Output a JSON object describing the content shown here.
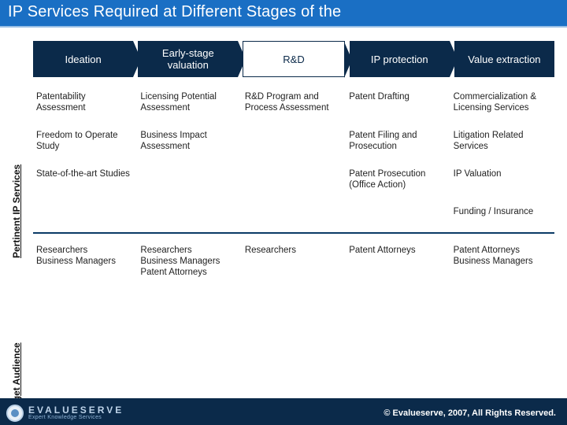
{
  "title": "IP Services Required at Different Stages of the",
  "stages": [
    {
      "label": "Ideation",
      "variant": "dark"
    },
    {
      "label": "Early-stage valuation",
      "variant": "dark"
    },
    {
      "label": "R&D",
      "variant": "white"
    },
    {
      "label": "IP protection",
      "variant": "dark"
    },
    {
      "label": "Value extraction",
      "variant": "dark"
    }
  ],
  "section_services_label": "Pertinent IP Services",
  "section_audience_label": "Target Audience",
  "services_rows": [
    [
      "Patentability Assessment",
      "Licensing Potential Assessment",
      "R&D Program and Process Assessment",
      "Patent Drafting",
      "Commercialization & Licensing Services"
    ],
    [
      "Freedom to Operate Study",
      "Business Impact Assessment",
      "",
      "Patent Filing and Prosecution",
      "Litigation Related Services"
    ],
    [
      "State-of-the-art Studies",
      "",
      "",
      "Patent Prosecution (Office Action)",
      "IP Valuation"
    ],
    [
      "",
      "",
      "",
      "",
      "Funding / Insurance"
    ]
  ],
  "audience_rows": [
    [
      "Researchers\nBusiness Managers",
      "Researchers\nBusiness Managers\nPatent Attorneys",
      "Researchers",
      "Patent Attorneys",
      "Patent Attorneys\nBusiness Managers"
    ]
  ],
  "brand": {
    "name": "EVALUESERVE",
    "tagline": "Expert Knowledge Services"
  },
  "copyright": "© Evalueserve, 2007, All Rights Reserved.",
  "colors": {
    "header_blue": "#1a6fc4",
    "stage_dark": "#0b2a4a",
    "text": "#222222",
    "divider": "#0b3a66"
  }
}
